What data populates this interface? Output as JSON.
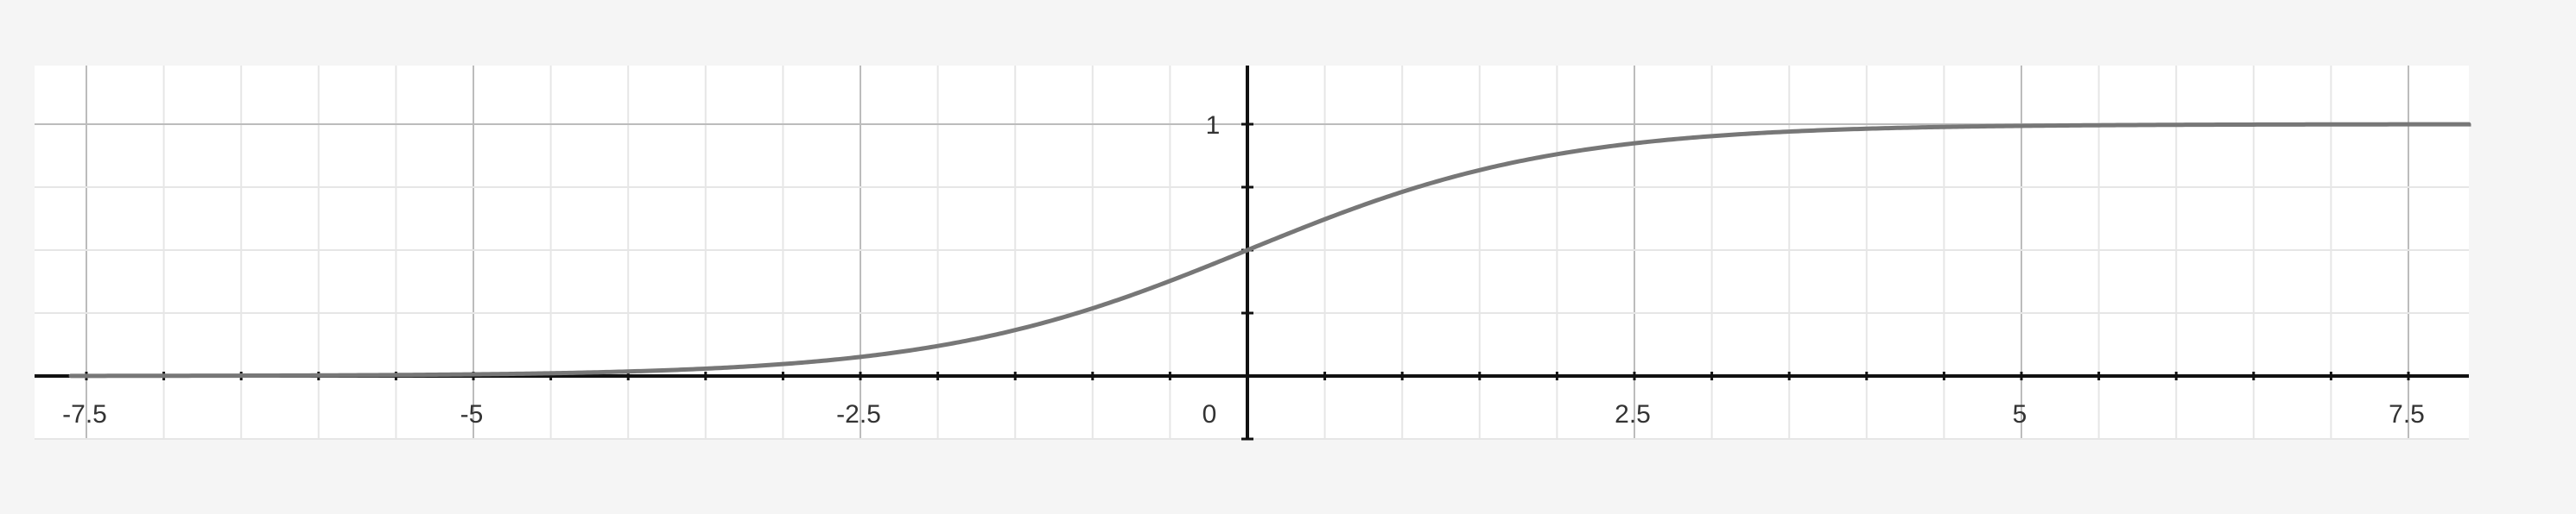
{
  "chart_data": {
    "type": "line",
    "function": "sigmoid",
    "title": "",
    "xlabel": "",
    "ylabel": "",
    "xlim": [
      -7.5,
      7.5
    ],
    "ylim": [
      -0.5,
      1.2
    ],
    "x_ticks": [
      {
        "value": -7.5,
        "label": "-7.5"
      },
      {
        "value": -5,
        "label": "-5"
      },
      {
        "value": -2.5,
        "label": "-2.5"
      },
      {
        "value": 0,
        "label": "0"
      },
      {
        "value": 2.5,
        "label": "2.5"
      },
      {
        "value": 5,
        "label": "5"
      },
      {
        "value": 7.5,
        "label": "7.5"
      }
    ],
    "y_ticks": [
      {
        "value": 1,
        "label": "1"
      }
    ],
    "grid": true,
    "series": [
      {
        "x": [
          -7.5,
          -7,
          -6.5,
          -6,
          -5.5,
          -5,
          -4.5,
          -4,
          -3.5,
          -3,
          -2.5,
          -2,
          -1.5,
          -1,
          -0.5,
          0,
          0.5,
          1,
          1.5,
          2,
          2.5,
          3,
          3.5,
          4,
          4.5,
          5,
          5.5,
          6,
          6.5,
          7,
          7.5
        ],
        "y": [
          0.0006,
          0.0009,
          0.0015,
          0.0025,
          0.0041,
          0.0067,
          0.011,
          0.018,
          0.0293,
          0.0474,
          0.0759,
          0.1192,
          0.1824,
          0.2689,
          0.3775,
          0.5,
          0.6225,
          0.7311,
          0.8176,
          0.8808,
          0.9241,
          0.9526,
          0.9707,
          0.982,
          0.989,
          0.9933,
          0.9959,
          0.9975,
          0.9985,
          0.9991,
          0.9994
        ],
        "color": "#777777"
      }
    ]
  }
}
